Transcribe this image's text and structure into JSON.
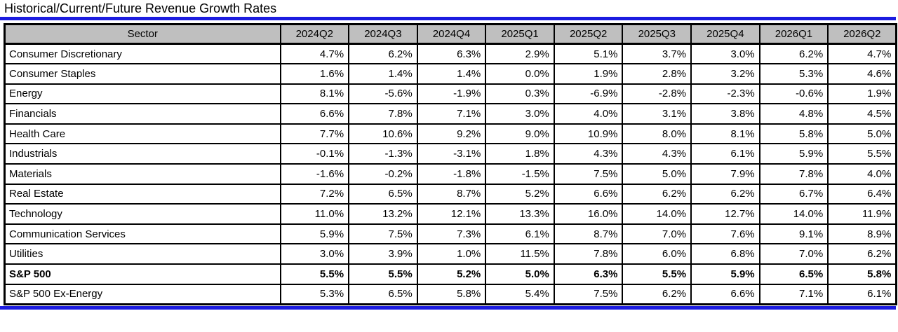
{
  "title": "Historical/Current/Future Revenue Growth Rates",
  "colors": {
    "accent_blue": "#1c1ce0",
    "header_bg": "#bfbfbf",
    "border_black": "#000000"
  },
  "chart_data": {
    "type": "table",
    "title": "Historical/Current/Future Revenue Growth Rates",
    "columns": [
      "Sector",
      "2024Q2",
      "2024Q3",
      "2024Q4",
      "2025Q1",
      "2025Q2",
      "2025Q3",
      "2025Q4",
      "2026Q1",
      "2026Q2"
    ],
    "rows": [
      {
        "sector": "Consumer Discretionary",
        "bold": false,
        "values": [
          "4.7%",
          "6.2%",
          "6.3%",
          "2.9%",
          "5.1%",
          "3.7%",
          "3.0%",
          "6.2%",
          "4.7%"
        ]
      },
      {
        "sector": "Consumer Staples",
        "bold": false,
        "values": [
          "1.6%",
          "1.4%",
          "1.4%",
          "0.0%",
          "1.9%",
          "2.8%",
          "3.2%",
          "5.3%",
          "4.6%"
        ]
      },
      {
        "sector": "Energy",
        "bold": false,
        "values": [
          "8.1%",
          "-5.6%",
          "-1.9%",
          "0.3%",
          "-6.9%",
          "-2.8%",
          "-2.3%",
          "-0.6%",
          "1.9%"
        ]
      },
      {
        "sector": "Financials",
        "bold": false,
        "values": [
          "6.6%",
          "7.8%",
          "7.1%",
          "3.0%",
          "4.0%",
          "3.1%",
          "3.8%",
          "4.8%",
          "4.5%"
        ]
      },
      {
        "sector": "Health Care",
        "bold": false,
        "values": [
          "7.7%",
          "10.6%",
          "9.2%",
          "9.0%",
          "10.9%",
          "8.0%",
          "8.1%",
          "5.8%",
          "5.0%"
        ]
      },
      {
        "sector": "Industrials",
        "bold": false,
        "values": [
          "-0.1%",
          "-1.3%",
          "-3.1%",
          "1.8%",
          "4.3%",
          "4.3%",
          "6.1%",
          "5.9%",
          "5.5%"
        ]
      },
      {
        "sector": "Materials",
        "bold": false,
        "values": [
          "-1.6%",
          "-0.2%",
          "-1.8%",
          "-1.5%",
          "7.5%",
          "5.0%",
          "7.9%",
          "7.8%",
          "4.0%"
        ]
      },
      {
        "sector": "Real Estate",
        "bold": false,
        "values": [
          "7.2%",
          "6.5%",
          "8.7%",
          "5.2%",
          "6.6%",
          "6.2%",
          "6.2%",
          "6.7%",
          "6.4%"
        ]
      },
      {
        "sector": "Technology",
        "bold": false,
        "values": [
          "11.0%",
          "13.2%",
          "12.1%",
          "13.3%",
          "16.0%",
          "14.0%",
          "12.7%",
          "14.0%",
          "11.9%"
        ]
      },
      {
        "sector": "Communication Services",
        "bold": false,
        "values": [
          "5.9%",
          "7.5%",
          "7.3%",
          "6.1%",
          "8.7%",
          "7.0%",
          "7.6%",
          "9.1%",
          "8.9%"
        ]
      },
      {
        "sector": "Utilities",
        "bold": false,
        "values": [
          "3.0%",
          "3.9%",
          "1.0%",
          "11.5%",
          "7.8%",
          "6.0%",
          "6.8%",
          "7.0%",
          "6.2%"
        ]
      },
      {
        "sector": "S&P 500",
        "bold": true,
        "values": [
          "5.5%",
          "5.5%",
          "5.2%",
          "5.0%",
          "6.3%",
          "5.5%",
          "5.9%",
          "6.5%",
          "5.8%"
        ]
      },
      {
        "sector": "S&P 500 Ex-Energy",
        "bold": false,
        "values": [
          "5.3%",
          "6.5%",
          "5.8%",
          "5.4%",
          "7.5%",
          "6.2%",
          "6.6%",
          "7.1%",
          "6.1%"
        ]
      }
    ]
  }
}
